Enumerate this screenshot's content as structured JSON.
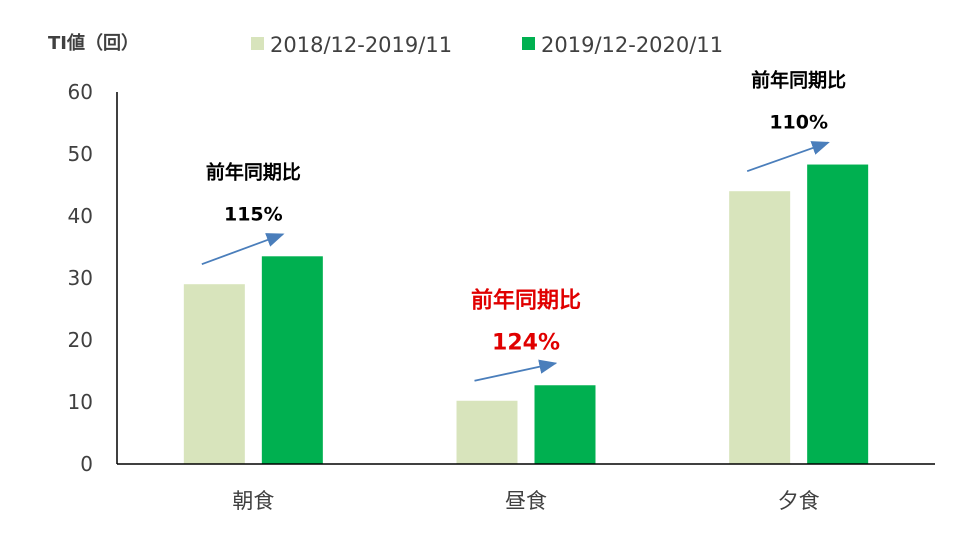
{
  "chart_data": {
    "type": "bar",
    "ylabel": "TI値（回）",
    "ylim": [
      0,
      60
    ],
    "yticks": [
      0,
      10,
      20,
      30,
      40,
      50,
      60
    ],
    "categories": [
      "朝食",
      "昼食",
      "夕食"
    ],
    "series": [
      {
        "name": "2018/12-2019/11",
        "color": "#d8e4bc",
        "values": [
          29,
          10.2,
          44
        ]
      },
      {
        "name": "2019/12-2020/11",
        "color": "#00b050",
        "values": [
          33.5,
          12.7,
          48.3
        ]
      }
    ],
    "legend_position": "top",
    "grid": false,
    "annotations": [
      {
        "category": "朝食",
        "label": "前年同期比",
        "value": "115%",
        "color": "#000000"
      },
      {
        "category": "昼食",
        "label": "前年同期比",
        "value": "124%",
        "color": "#e00000"
      },
      {
        "category": "夕食",
        "label": "前年同期比",
        "value": "110%",
        "color": "#000000"
      }
    ],
    "arrow_color": "#4a7ebb"
  }
}
